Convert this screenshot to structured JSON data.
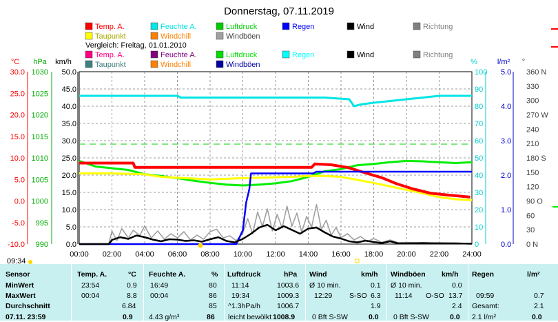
{
  "title": "Donnerstag, 07.11.2019",
  "comparison_label": "Vergleich: Freitag, 01.01.2010",
  "time_marker": "09:34",
  "legend_current": [
    {
      "label": "Temp. A.",
      "color": "#ff0000"
    },
    {
      "label": "Feuchte A.",
      "color": "#00e5e5"
    },
    {
      "label": "Luftdruck",
      "color": "#00cc00"
    },
    {
      "label": "Regen",
      "color": "#0000ff"
    },
    {
      "label": "Wind",
      "color": "#000000"
    },
    {
      "label": "Richtung",
      "color": "#808080"
    },
    {
      "label": "Taupunkt",
      "color": "#ffff00"
    },
    {
      "label": "Windchill",
      "color": "#ff8000"
    },
    {
      "label": "Windböen",
      "color": "#a0a0a0"
    }
  ],
  "legend_compare": [
    {
      "label": "Temp. A.",
      "color": "#ff0080"
    },
    {
      "label": "Feuchte A.",
      "color": "#800080"
    },
    {
      "label": "Luftdruck",
      "color": "#00dd00"
    },
    {
      "label": "Regen",
      "color": "#00ffff"
    },
    {
      "label": "Wind",
      "color": "#000000"
    },
    {
      "label": "Richtung",
      "color": "#808080"
    },
    {
      "label": "Taupunkt",
      "color": "#408080"
    },
    {
      "label": "Windchill",
      "color": "#ff8000"
    },
    {
      "label": "Windböen",
      "color": "#0000a0"
    }
  ],
  "chart_data": {
    "type": "line",
    "x_ticks": [
      "00:00",
      "02:00",
      "04:00",
      "06:00",
      "08:00",
      "10:00",
      "12:00",
      "14:00",
      "16:00",
      "18:00",
      "20:00",
      "22:00",
      "24:00"
    ],
    "axes": {
      "temp": {
        "unit": "°C",
        "color": "#ff0000",
        "min": -10,
        "max": 30,
        "ticks": [
          "30.0",
          "25.0",
          "20.0",
          "15.0",
          "10.0",
          "5.0",
          "0.0",
          "-5.0",
          "-10.0"
        ]
      },
      "pressure": {
        "unit": "hPa",
        "color": "#00aa00",
        "min": 990,
        "max": 1030,
        "ticks": [
          "1030",
          "1025",
          "1020",
          "1015",
          "1010",
          "1005",
          "1000",
          "995",
          "990"
        ]
      },
      "wind": {
        "unit": "km/h",
        "color": "#000000",
        "min": 0,
        "max": 50,
        "ticks": [
          "50.0",
          "45.0",
          "40.0",
          "35.0",
          "30.0",
          "25.0",
          "20.0",
          "15.0",
          "10.0",
          "5.0",
          "0.0"
        ]
      },
      "humidity": {
        "unit": "%",
        "color": "#00cccc",
        "min": 0,
        "max": 100,
        "ticks": [
          "100",
          "90",
          "80",
          "70",
          "60",
          "50",
          "40",
          "30",
          "20",
          "10",
          "0"
        ]
      },
      "rain": {
        "unit": "l/m²",
        "color": "#0000cc",
        "min": 0,
        "max": 5,
        "ticks": [
          "5.0",
          "4.0",
          "3.0",
          "2.0",
          "1.0",
          "0.0"
        ]
      },
      "direction": {
        "unit": "°",
        "color": "#404040",
        "min": 0,
        "max": 360,
        "ticks": [
          "360 N",
          "330",
          "300",
          "270 W",
          "240",
          "210",
          "180 S",
          "150",
          "120",
          "90 O",
          "60",
          "30",
          "0 N"
        ]
      }
    },
    "series": [
      {
        "name": "Temp. A.",
        "axis": "temp",
        "color": "#ff0000",
        "points": [
          [
            0,
            8.8
          ],
          [
            3.3,
            8.8
          ],
          [
            3.4,
            7.8
          ],
          [
            10,
            7.8
          ],
          [
            14.2,
            7.8
          ],
          [
            14.4,
            8.6
          ],
          [
            15.4,
            8.4
          ],
          [
            16.4,
            7.8
          ],
          [
            17.6,
            6.4
          ],
          [
            18.5,
            5.4
          ],
          [
            19.4,
            4.0
          ],
          [
            20.4,
            2.8
          ],
          [
            21.5,
            1.8
          ],
          [
            22.5,
            1.4
          ],
          [
            23.9,
            0.9
          ]
        ]
      },
      {
        "name": "Taupunkt",
        "axis": "temp",
        "color": "#ffff00",
        "points": [
          [
            0,
            6.4
          ],
          [
            2,
            6.4
          ],
          [
            4,
            6.2
          ],
          [
            5,
            5.6
          ],
          [
            6,
            5.4
          ],
          [
            8,
            5.0
          ],
          [
            10,
            5.3
          ],
          [
            11,
            5.4
          ],
          [
            13,
            5.6
          ],
          [
            14,
            5.8
          ],
          [
            15,
            5.8
          ],
          [
            16,
            5.6
          ],
          [
            17,
            4.9
          ],
          [
            18,
            4.2
          ],
          [
            19,
            3.4
          ],
          [
            20,
            2.6
          ],
          [
            21,
            1.8
          ],
          [
            22,
            0.9
          ],
          [
            23,
            0.4
          ],
          [
            24,
            0.2
          ]
        ]
      },
      {
        "name": "Luftdruck",
        "axis": "pressure",
        "color": "#00ee00",
        "points": [
          [
            0,
            1009.3
          ],
          [
            1,
            1008.0
          ],
          [
            2,
            1007.6
          ],
          [
            3,
            1007.2
          ],
          [
            4,
            1006.2
          ],
          [
            5,
            1005.8
          ],
          [
            6,
            1005.3
          ],
          [
            7,
            1004.7
          ],
          [
            8,
            1004.2
          ],
          [
            9,
            1003.8
          ],
          [
            10,
            1003.6
          ],
          [
            11,
            1003.8
          ],
          [
            12,
            1004.1
          ],
          [
            13,
            1004.6
          ],
          [
            14,
            1005.6
          ],
          [
            15,
            1006.9
          ],
          [
            16,
            1007.4
          ],
          [
            17,
            1008.3
          ],
          [
            18,
            1008.6
          ],
          [
            19,
            1009.0
          ],
          [
            20,
            1009.3
          ],
          [
            21,
            1009.2
          ],
          [
            22,
            1009.0
          ],
          [
            23,
            1008.8
          ],
          [
            24,
            1009.0
          ]
        ]
      },
      {
        "name": "Feuchte A.",
        "axis": "humidity",
        "color": "#00e5e5",
        "points": [
          [
            0,
            86
          ],
          [
            6,
            86
          ],
          [
            6.2,
            85
          ],
          [
            15,
            85
          ],
          [
            16.5,
            84
          ],
          [
            16.8,
            80
          ],
          [
            17.2,
            81
          ],
          [
            18,
            82
          ],
          [
            19,
            83
          ],
          [
            20,
            84
          ],
          [
            21,
            85
          ],
          [
            22,
            86
          ],
          [
            24,
            86
          ]
        ]
      },
      {
        "name": "Regen",
        "axis": "rain",
        "color": "#0000ff",
        "points": [
          [
            0,
            0
          ],
          [
            9.6,
            0
          ],
          [
            9.7,
            0.1
          ],
          [
            10,
            0.4
          ],
          [
            10.2,
            1.2
          ],
          [
            10.4,
            1.6
          ],
          [
            10.5,
            2.05
          ],
          [
            14.3,
            2.05
          ],
          [
            14.5,
            2.1
          ],
          [
            24,
            2.1
          ]
        ]
      },
      {
        "name": "Wind",
        "axis": "wind",
        "color": "#000000",
        "points": [
          [
            0,
            0
          ],
          [
            1.8,
            0
          ],
          [
            2,
            1.2
          ],
          [
            2.5,
            2.0
          ],
          [
            3,
            1.5
          ],
          [
            3.5,
            2.5
          ],
          [
            4,
            2.0
          ],
          [
            4.5,
            1.3
          ],
          [
            5,
            0.8
          ],
          [
            5.5,
            1.4
          ],
          [
            6,
            1.3
          ],
          [
            6.5,
            0.9
          ],
          [
            7,
            1.1
          ],
          [
            7.5,
            0.7
          ],
          [
            8,
            1.4
          ],
          [
            8.5,
            2.0
          ],
          [
            9,
            0.9
          ],
          [
            9.5,
            0.5
          ],
          [
            10,
            1.5
          ],
          [
            10.5,
            3.0
          ],
          [
            11,
            4.8
          ],
          [
            11.5,
            5.6
          ],
          [
            12,
            4.0
          ],
          [
            12.5,
            5.2
          ],
          [
            13,
            4.1
          ],
          [
            13.5,
            3.0
          ],
          [
            14,
            4.5
          ],
          [
            14.5,
            4.8
          ],
          [
            15,
            3.4
          ],
          [
            15.5,
            2.2
          ],
          [
            16,
            1.6
          ],
          [
            16.5,
            0.8
          ],
          [
            17,
            0.5
          ],
          [
            17.5,
            1.0
          ],
          [
            18,
            0.6
          ],
          [
            18.5,
            0.3
          ],
          [
            19,
            0.8
          ],
          [
            19.5,
            0.2
          ],
          [
            20,
            0.2
          ],
          [
            21,
            0.3
          ],
          [
            22,
            0.2
          ],
          [
            23,
            0.2
          ],
          [
            24,
            0.1
          ]
        ]
      },
      {
        "name": "Windböen",
        "axis": "wind",
        "color": "#a0a0a0",
        "points": [
          [
            0,
            0
          ],
          [
            1.8,
            0
          ],
          [
            2,
            3.8
          ],
          [
            2.3,
            1.0
          ],
          [
            2.6,
            4.5
          ],
          [
            3,
            1.8
          ],
          [
            3.3,
            4.0
          ],
          [
            3.7,
            2.5
          ],
          [
            4,
            5.2
          ],
          [
            4.4,
            1.8
          ],
          [
            4.8,
            3.8
          ],
          [
            5.2,
            1.4
          ],
          [
            5.6,
            3.0
          ],
          [
            6,
            1.8
          ],
          [
            6.4,
            3.6
          ],
          [
            6.8,
            1.2
          ],
          [
            7.2,
            2.6
          ],
          [
            7.6,
            1.4
          ],
          [
            8,
            3.6
          ],
          [
            8.4,
            4.3
          ],
          [
            8.8,
            1.8
          ],
          [
            9.2,
            2.4
          ],
          [
            9.6,
            1.0
          ],
          [
            10,
            3.2
          ],
          [
            10.3,
            7.4
          ],
          [
            10.6,
            3.0
          ],
          [
            10.9,
            9.3
          ],
          [
            11.2,
            5.1
          ],
          [
            11.5,
            10.2
          ],
          [
            11.8,
            3.8
          ],
          [
            12.1,
            8.6
          ],
          [
            12.4,
            4.6
          ],
          [
            12.7,
            11.0
          ],
          [
            13,
            5.2
          ],
          [
            13.3,
            9.0
          ],
          [
            13.6,
            3.5
          ],
          [
            13.9,
            8.0
          ],
          [
            14.2,
            4.9
          ],
          [
            14.5,
            11.5
          ],
          [
            14.8,
            4.3
          ],
          [
            15.1,
            6.9
          ],
          [
            15.4,
            2.6
          ],
          [
            15.7,
            4.8
          ],
          [
            16,
            1.9
          ],
          [
            16.4,
            3.0
          ],
          [
            16.8,
            1.2
          ],
          [
            17.2,
            2.2
          ],
          [
            17.6,
            0.7
          ],
          [
            18,
            1.6
          ],
          [
            18.5,
            0.5
          ],
          [
            19,
            1.2
          ],
          [
            19.5,
            0.4
          ],
          [
            20,
            0.5
          ],
          [
            21,
            0.3
          ],
          [
            22,
            0.4
          ],
          [
            23,
            0.3
          ],
          [
            24,
            0.2
          ]
        ]
      }
    ],
    "dashed_line": {
      "axis": "wind",
      "value": 29.0,
      "color": "#00cc00"
    }
  },
  "stats": {
    "headers": {
      "sensor": "Sensor",
      "temp": "Temp. A.",
      "temp_unit": "°C",
      "hum": "Feuchte A.",
      "hum_unit": "%",
      "press": "Luftdruck",
      "press_unit": "hPa",
      "wind": "Wind",
      "wind_unit": "km/h",
      "gust": "Windböen",
      "gust_unit": "km/h",
      "rain": "Regen",
      "rain_unit": "l/m²"
    },
    "rows": {
      "min": {
        "label": "MinWert",
        "temp_time": "23:54",
        "temp": "0.9",
        "hum_time": "16:49",
        "hum": "80",
        "press_time": "11:14",
        "press": "1003.6",
        "wind_time": "Ø 10 min.",
        "wind": "0.1",
        "gust_time": "Ø 10 min.",
        "gust": "0.0",
        "rain_time": "",
        "rain": ""
      },
      "max": {
        "label": "MaxWert",
        "temp_time": "00:04",
        "temp": "8.8",
        "hum_time": "00:04",
        "hum": "86",
        "press_time": "19:34",
        "press": "1009.3",
        "wind_time": "12:29",
        "wind_dir": "S-SO",
        "wind": "6.3",
        "gust_time": "11:14",
        "gust_dir": "O-SO",
        "gust": "13.7",
        "rain_time": "09:59",
        "rain": "0.7"
      },
      "avg": {
        "label": "Durchschnitt",
        "temp": "6.84",
        "hum": "85",
        "press_time": "^1.3hPa/h",
        "press": "1006.7",
        "wind": "1.9",
        "gust": "2.4",
        "rain_time": "Gesamt:",
        "rain": "2.1"
      },
      "current": {
        "label": "07.11. 23:59",
        "temp": "0.9",
        "hum_time": "4.43 g/m³",
        "hum": "86",
        "press_time": "leicht bewölkt",
        "press": "1008.9",
        "wind_time": "0 Bft S-SW",
        "wind": "0.0",
        "gust_time": "0 Bft S-SW",
        "gust": "0.0",
        "rain_time": "2.1 l/m²",
        "rain": "0.0"
      }
    }
  }
}
